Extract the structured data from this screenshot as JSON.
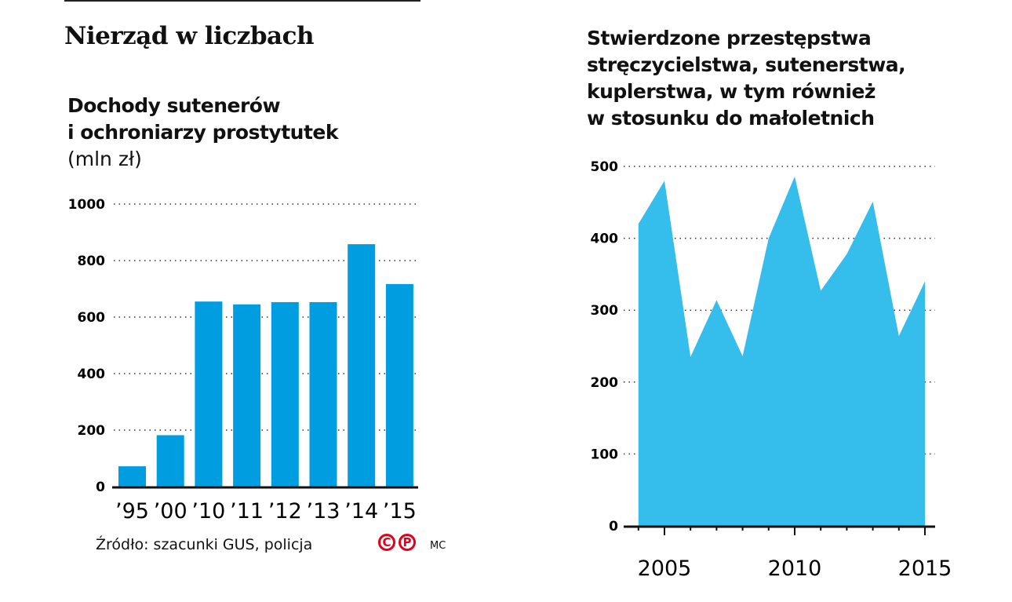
{
  "main_title": "Nierząd w liczbach",
  "source": "Źródło: szacunki GUS, policja",
  "logo_letters": [
    "C",
    "P"
  ],
  "author": "MC",
  "chart_data": [
    {
      "type": "bar",
      "title_lines": [
        "Dochody sutenerów",
        "i ochroniarzy prostytutek"
      ],
      "unit": "(mln zł)",
      "categories": [
        "’95",
        "’00",
        "’10",
        "’11",
        "’12",
        "’13",
        "’14",
        "’15"
      ],
      "values": [
        72,
        182,
        655,
        645,
        653,
        653,
        858,
        717
      ],
      "ylim": [
        0,
        1000
      ],
      "yticks": [
        0,
        200,
        400,
        600,
        800,
        1000
      ],
      "grid": true,
      "color": "#009ee0"
    },
    {
      "type": "area",
      "title_lines": [
        "Stwierdzone przestępstwa",
        "stręczycielstwa, sutenerstwa,",
        "kuplerstwa, w tym również",
        "w stosunku do małoletnich"
      ],
      "x": [
        2004,
        2005,
        2006,
        2007,
        2008,
        2009,
        2010,
        2011,
        2012,
        2013,
        2014,
        2015
      ],
      "values": [
        420,
        480,
        235,
        314,
        236,
        400,
        486,
        327,
        378,
        451,
        264,
        340
      ],
      "ylim": [
        0,
        500
      ],
      "yticks": [
        0,
        100,
        200,
        300,
        400,
        500
      ],
      "xticks": [
        2005,
        2010,
        2015
      ],
      "grid": true,
      "color": "#35bdec"
    }
  ]
}
